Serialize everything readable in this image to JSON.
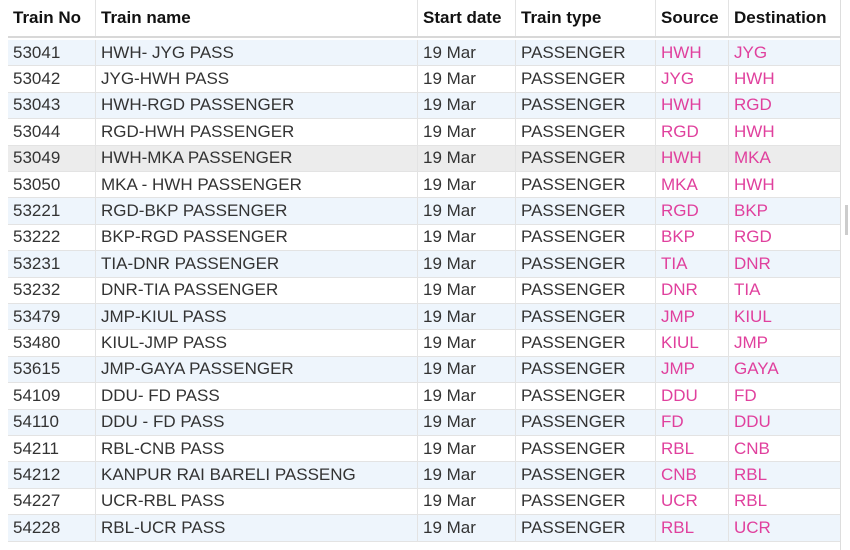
{
  "table": {
    "columns": [
      "Train No",
      "Train name",
      "Start date",
      "Train type",
      "Source",
      "Destination"
    ],
    "rows": [
      [
        "53041",
        "HWH- JYG PASS",
        "19 Mar",
        "PASSENGER",
        "HWH",
        "JYG"
      ],
      [
        "53042",
        "JYG-HWH PASS",
        "19 Mar",
        "PASSENGER",
        "JYG",
        "HWH"
      ],
      [
        "53043",
        "HWH-RGD PASSENGER",
        "19 Mar",
        "PASSENGER",
        "HWH",
        "RGD"
      ],
      [
        "53044",
        "RGD-HWH PASSENGER",
        "19 Mar",
        "PASSENGER",
        "RGD",
        "HWH"
      ],
      [
        "53049",
        "HWH-MKA PASSENGER",
        "19 Mar",
        "PASSENGER",
        "HWH",
        "MKA"
      ],
      [
        "53050",
        "MKA - HWH PASSENGER",
        "19 Mar",
        "PASSENGER",
        "MKA",
        "HWH"
      ],
      [
        "53221",
        "RGD-BKP PASSENGER",
        "19 Mar",
        "PASSENGER",
        "RGD",
        "BKP"
      ],
      [
        "53222",
        "BKP-RGD PASSENGER",
        "19 Mar",
        "PASSENGER",
        "BKP",
        "RGD"
      ],
      [
        "53231",
        "TIA-DNR PASSENGER",
        "19 Mar",
        "PASSENGER",
        "TIA",
        "DNR"
      ],
      [
        "53232",
        "DNR-TIA PASSENGER",
        "19 Mar",
        "PASSENGER",
        "DNR",
        "TIA"
      ],
      [
        "53479",
        "JMP-KIUL PASS",
        "19 Mar",
        "PASSENGER",
        "JMP",
        "KIUL"
      ],
      [
        "53480",
        "KIUL-JMP PASS",
        "19 Mar",
        "PASSENGER",
        "KIUL",
        "JMP"
      ],
      [
        "53615",
        "JMP-GAYA PASSENGER",
        "19 Mar",
        "PASSENGER",
        "JMP",
        "GAYA"
      ],
      [
        "54109",
        "DDU- FD PASS",
        "19 Mar",
        "PASSENGER",
        "DDU",
        "FD"
      ],
      [
        "54110",
        "DDU - FD PASS",
        "19 Mar",
        "PASSENGER",
        "FD",
        "DDU"
      ],
      [
        "54211",
        "RBL-CNB PASS",
        "19 Mar",
        "PASSENGER",
        "RBL",
        "CNB"
      ],
      [
        "54212",
        "KANPUR RAI BARELI PASSENG",
        "19 Mar",
        "PASSENGER",
        "CNB",
        "RBL"
      ],
      [
        "54227",
        "UCR-RBL PASS",
        "19 Mar",
        "PASSENGER",
        "UCR",
        "RBL"
      ],
      [
        "54228",
        "RBL-UCR PASS",
        "19 Mar",
        "PASSENGER",
        "RBL",
        "UCR"
      ]
    ]
  }
}
